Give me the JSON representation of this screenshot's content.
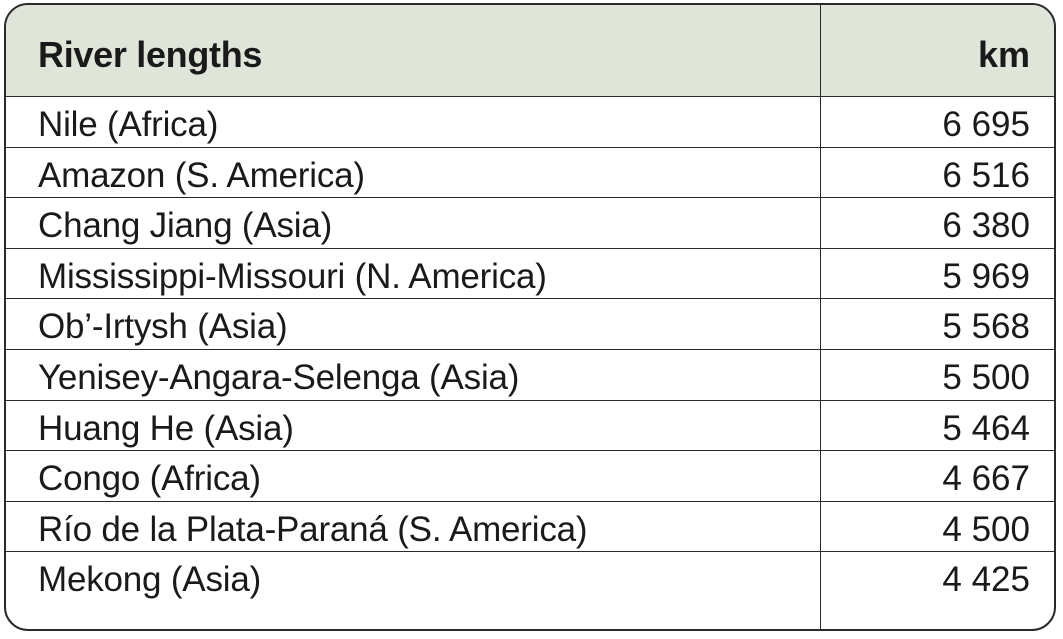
{
  "table": {
    "header": {
      "name_label": "River lengths",
      "value_label": "km"
    },
    "rows": [
      {
        "name": "Nile (Africa)",
        "km": "6 695"
      },
      {
        "name": "Amazon (S. America)",
        "km": "6 516"
      },
      {
        "name": "Chang Jiang (Asia)",
        "km": "6 380"
      },
      {
        "name": "Mississippi-Missouri (N. America)",
        "km": "5 969"
      },
      {
        "name": "Ob’-Irtysh (Asia)",
        "km": "5 568"
      },
      {
        "name": "Yenisey-Angara-Selenga (Asia)",
        "km": "5 500"
      },
      {
        "name": "Huang He (Asia)",
        "km": "5 464"
      },
      {
        "name": "Congo (Africa)",
        "km": "4 667"
      },
      {
        "name": "Río de la Plata-Paraná (S. America)",
        "km": "4 500"
      },
      {
        "name": "Mekong (Asia)",
        "km": "4 425"
      }
    ],
    "colors": {
      "header_background": "#dfe5d9",
      "border": "#2a2a2a"
    }
  }
}
